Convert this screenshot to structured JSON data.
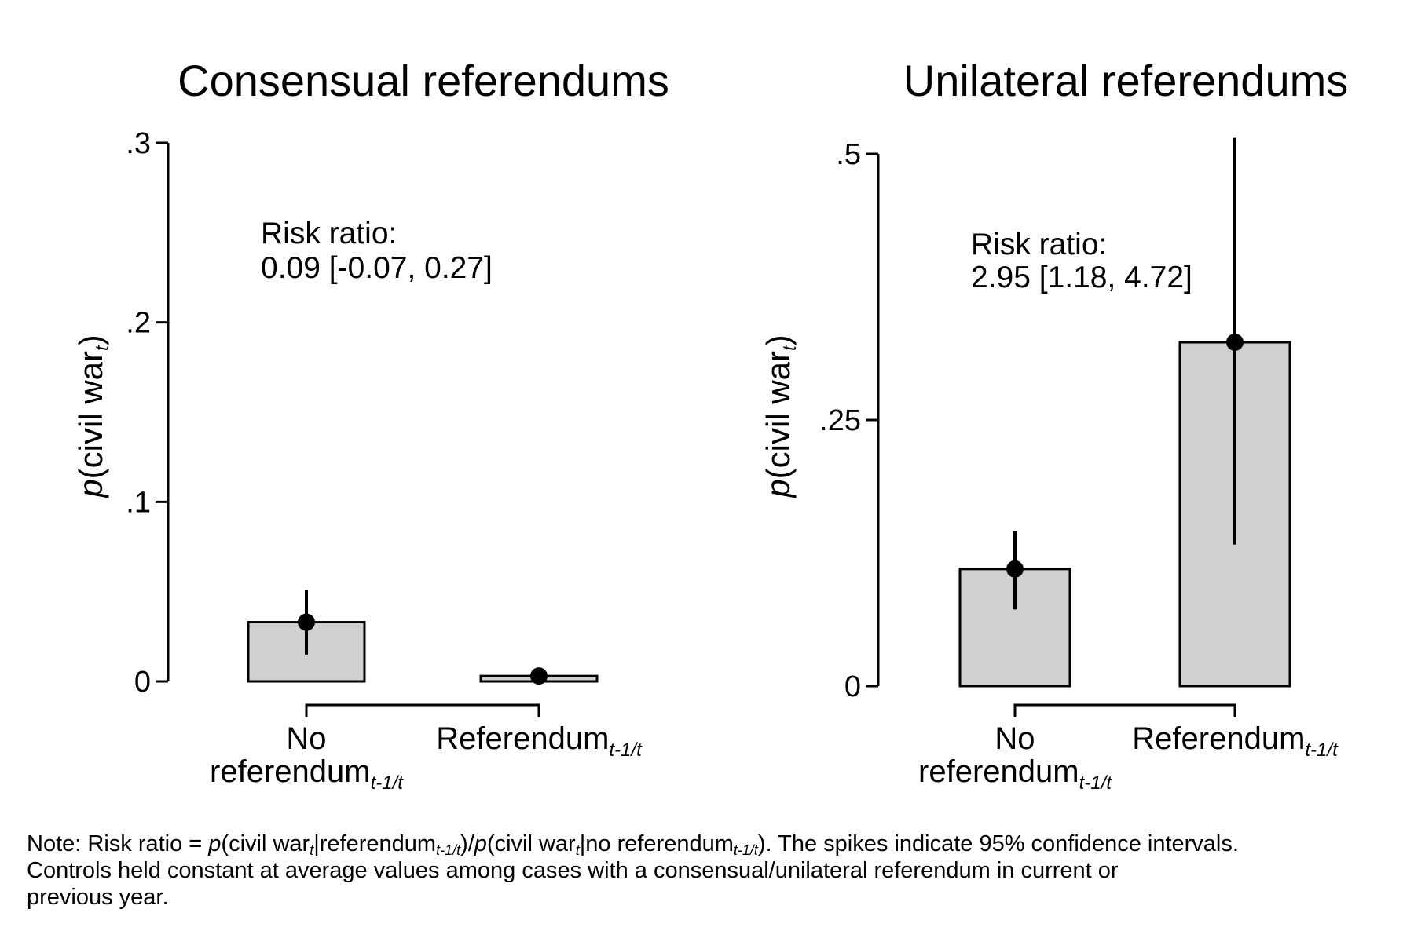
{
  "chart_data": [
    {
      "type": "bar",
      "title": "Consensual referendums",
      "ylabel_italic": "p",
      "ylabel_text": "(civil war",
      "ylabel_sub": "t",
      "ylabel_close": ")",
      "ylim": [
        0,
        0.3
      ],
      "yticks": [
        0,
        0.1,
        0.2,
        0.3
      ],
      "ytick_labels": [
        "0",
        ".1",
        ".2",
        ".3"
      ],
      "categories": [
        {
          "main": "No",
          "line2": "referendum",
          "sub": "t-1/t"
        },
        {
          "main": "Referendum",
          "line2": "",
          "sub": "t-1/t"
        }
      ],
      "values": [
        0.033,
        0.003
      ],
      "ci_low": [
        0.015,
        -0.001
      ],
      "ci_high": [
        0.051,
        0.007
      ],
      "annotation": [
        "Risk ratio:",
        "0.09 [-0.07, 0.27]"
      ],
      "bar_color": "#d0d0d0",
      "grid": false,
      "legend": "none"
    },
    {
      "type": "bar",
      "title": "Unilateral referendums",
      "ylabel_italic": "p",
      "ylabel_text": "(civil war",
      "ylabel_sub": "t",
      "ylabel_close": ")",
      "ylim": [
        0,
        0.5
      ],
      "yticks": [
        0,
        0.25,
        0.5
      ],
      "ytick_labels": [
        "0",
        ".25",
        ".5"
      ],
      "categories": [
        {
          "main": "No",
          "line2": "referendum",
          "sub": "t-1/t"
        },
        {
          "main": "Referendum",
          "line2": "",
          "sub": "t-1/t"
        }
      ],
      "values": [
        0.11,
        0.323
      ],
      "ci_low": [
        0.072,
        0.133
      ],
      "ci_high": [
        0.146,
        0.515
      ],
      "annotation": [
        "Risk ratio:",
        "2.95 [1.18, 4.72]"
      ],
      "bar_color": "#d0d0d0",
      "grid": false,
      "legend": "none"
    }
  ],
  "note": {
    "parts": [
      {
        "t": "Note: Risk ratio = "
      },
      {
        "t": "p",
        "i": true
      },
      {
        "t": "(civil war"
      },
      {
        "t": "t",
        "sub": true
      },
      {
        "t": "|referendum"
      },
      {
        "t": "t-1/t",
        "sub": true
      },
      {
        "t": ")/"
      },
      {
        "t": "p",
        "i": true
      },
      {
        "t": "(civil war"
      },
      {
        "t": "t",
        "sub": true
      },
      {
        "t": "|no referendum"
      },
      {
        "t": "t-1/t",
        "sub": true
      },
      {
        "t": "). The spikes indicate 95% confidence intervals."
      }
    ],
    "line2": "Controls held constant at average values among cases with a consensual/unilateral referendum in current or",
    "line3": "previous year."
  }
}
